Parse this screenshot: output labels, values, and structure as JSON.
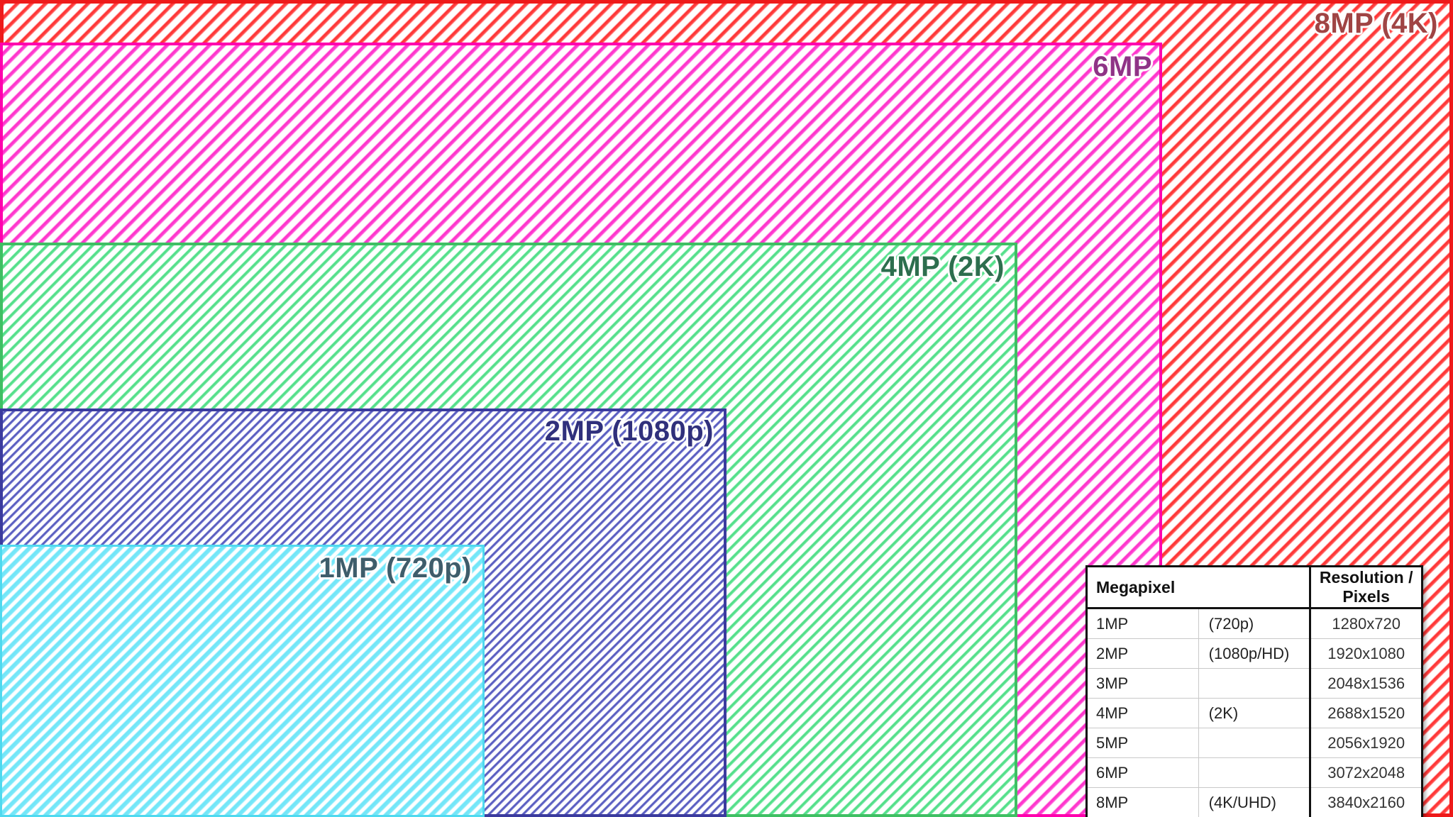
{
  "colors": {
    "red_border": "#ee1a1a",
    "red_stripe": "#ff2d2d",
    "red_label": "#a04444",
    "magenta_border": "#ff00ad",
    "magenta_stripe": "#ff2cc8",
    "magenta_label": "#8f3386",
    "green_border": "#3fbf63",
    "green_stripe": "#4cdd85",
    "green_label": "#2d6e4e",
    "navy_border": "#3b3b9e",
    "navy_stripe": "#5357bd",
    "navy_label": "#30307c",
    "cyan_border": "#4fd9ef",
    "cyan_stripe": "#6fe5f8",
    "cyan_label": "#3e5d6b"
  },
  "rects": [
    {
      "id": "8mp",
      "label": "8MP (4K)",
      "resolution": "3840x2160"
    },
    {
      "id": "6mp",
      "label": "6MP",
      "resolution": "3072x2048"
    },
    {
      "id": "4mp",
      "label": "4MP (2K)",
      "resolution": "2688x1520"
    },
    {
      "id": "2mp",
      "label": "2MP (1080p)",
      "resolution": "1920x1080"
    },
    {
      "id": "1mp",
      "label": "1MP (720p)",
      "resolution": "1280x720"
    }
  ],
  "table": {
    "headers": [
      "Megapixel",
      "Resolution / Pixels"
    ],
    "rows": [
      {
        "mp": "1MP",
        "variant": "(720p)",
        "resolution": "1280x720"
      },
      {
        "mp": "2MP",
        "variant": "(1080p/HD)",
        "resolution": "1920x1080"
      },
      {
        "mp": "3MP",
        "variant": "",
        "resolution": "2048x1536"
      },
      {
        "mp": "4MP",
        "variant": "(2K)",
        "resolution": "2688x1520"
      },
      {
        "mp": "5MP",
        "variant": "",
        "resolution": "2056x1920"
      },
      {
        "mp": "6MP",
        "variant": "",
        "resolution": "3072x2048"
      },
      {
        "mp": "8MP",
        "variant": "(4K/UHD)",
        "resolution": "3840x2160"
      }
    ]
  }
}
